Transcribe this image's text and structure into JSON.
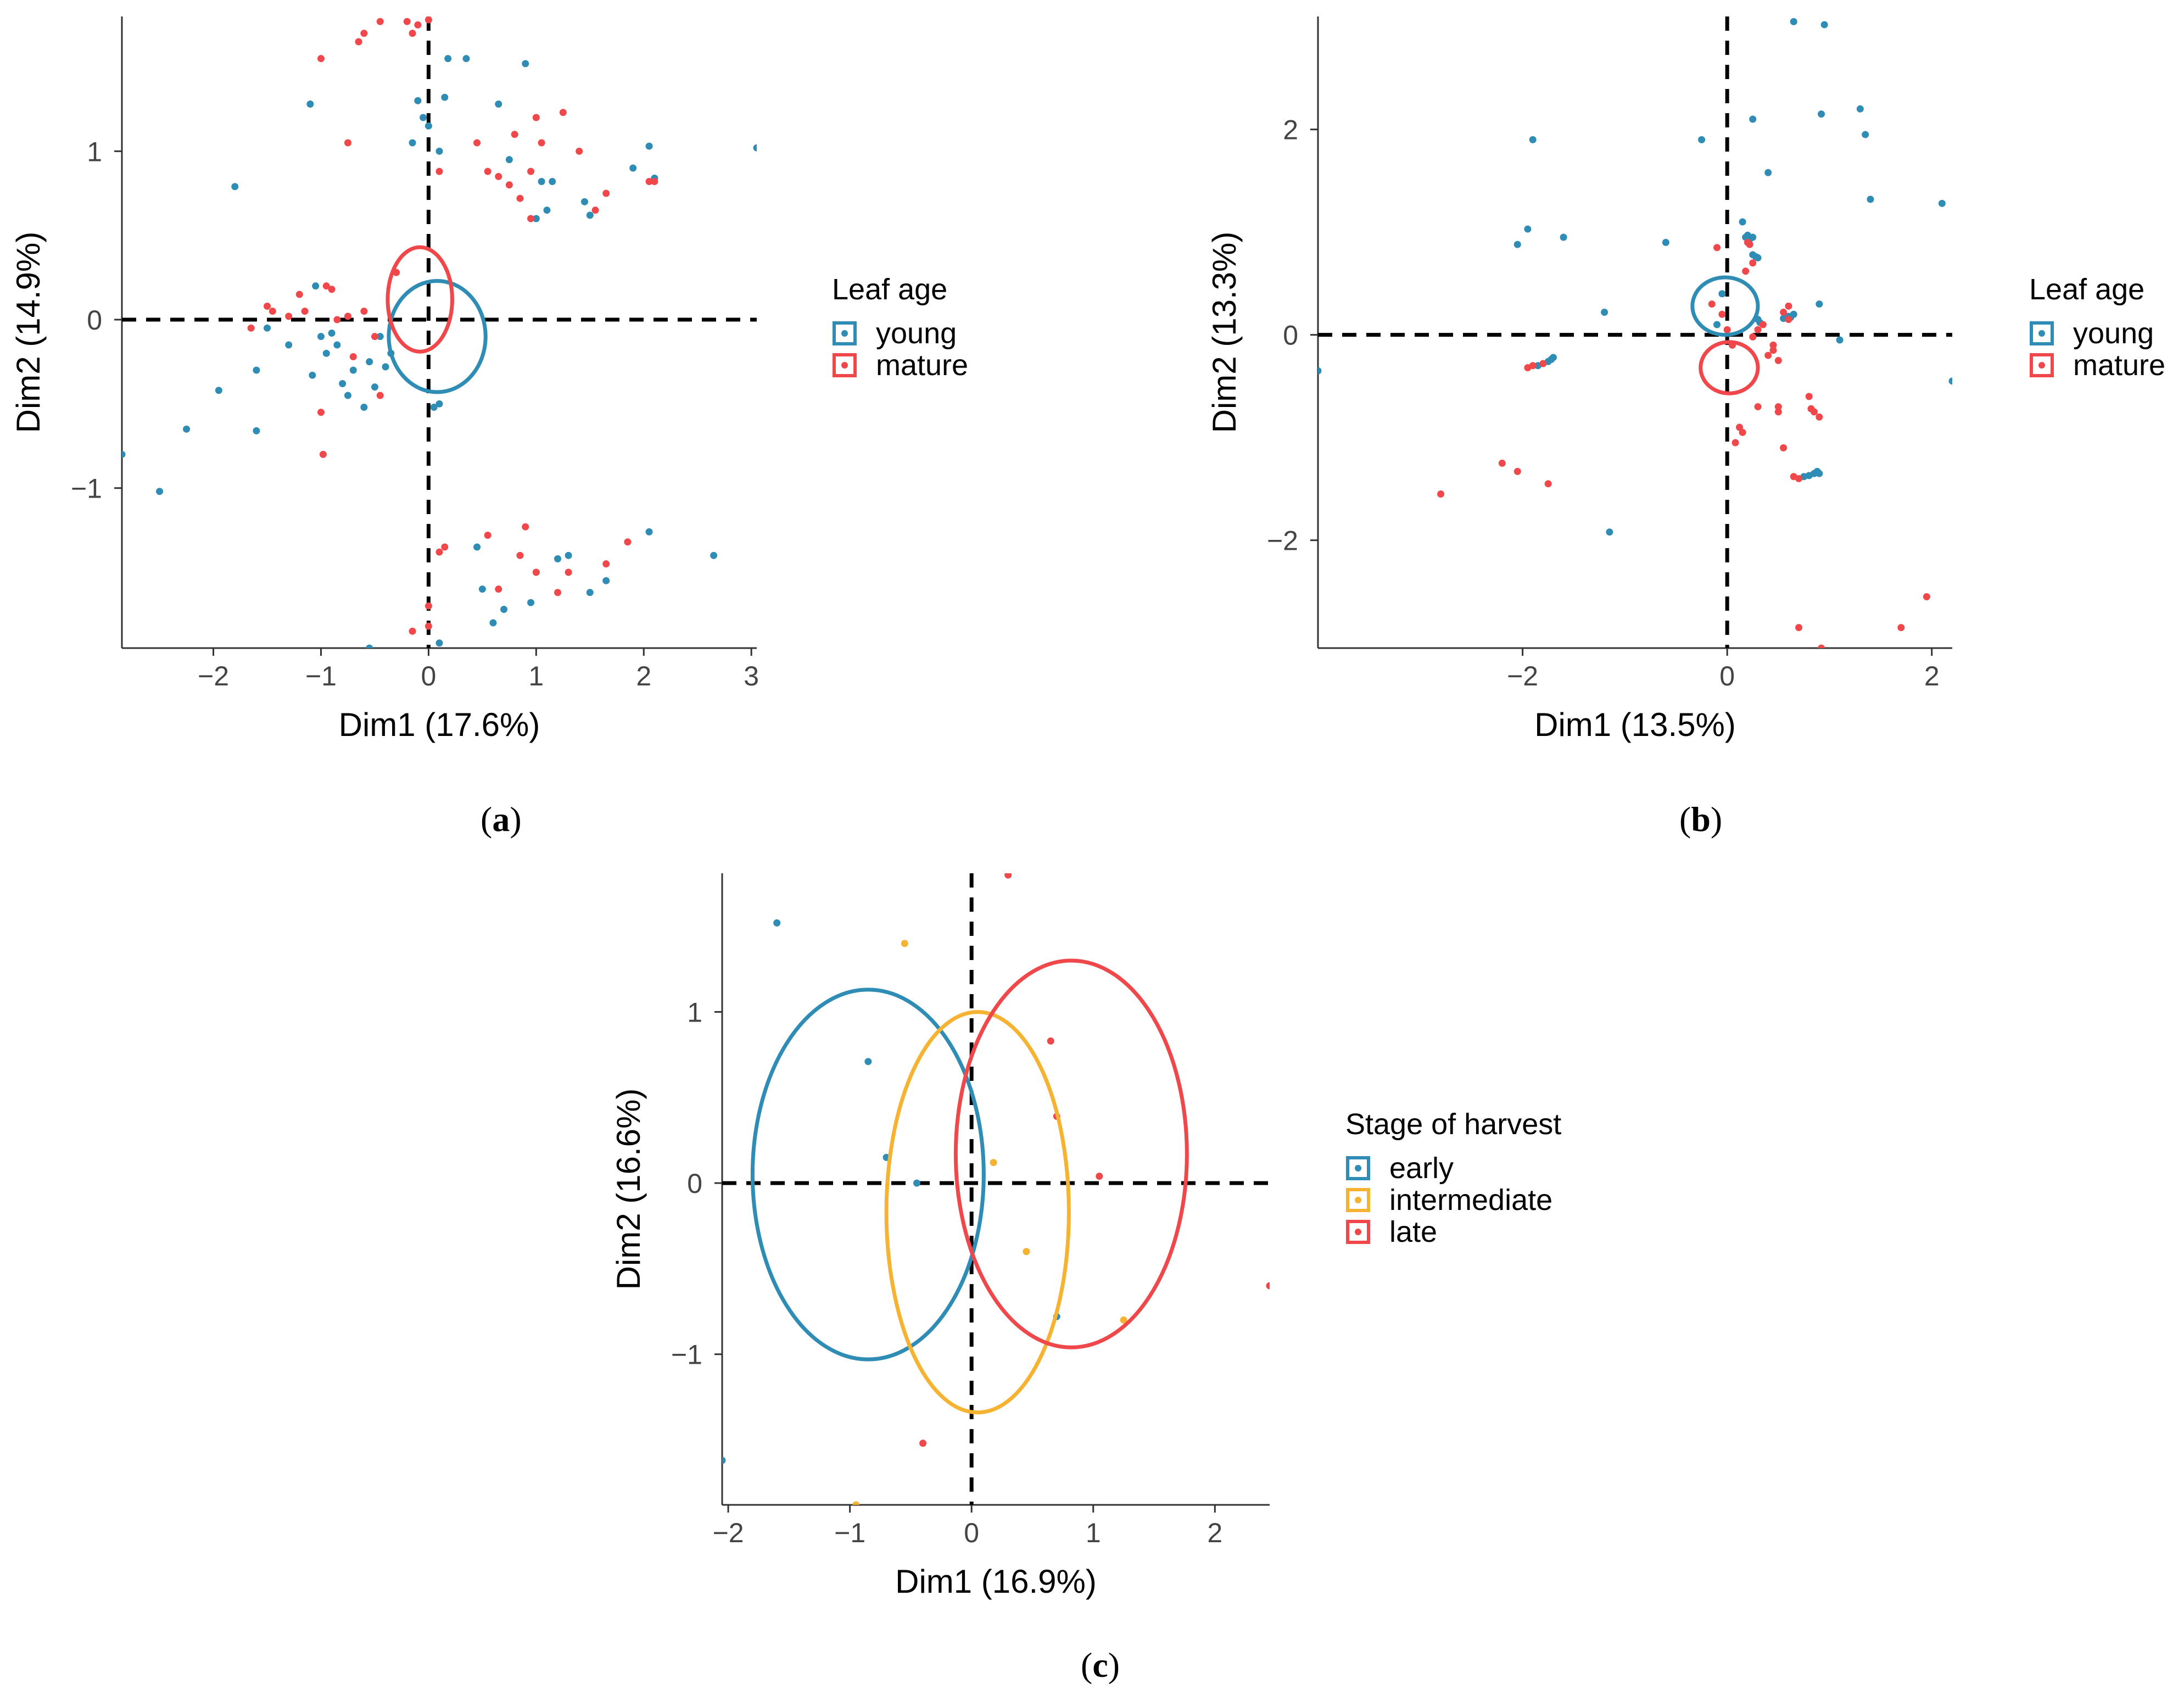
{
  "figure": {
    "captions": [
      {
        "open": "(",
        "letter": "a",
        "close": ")"
      },
      {
        "open": "(",
        "letter": "b",
        "close": ")"
      },
      {
        "open": "(",
        "letter": "c",
        "close": ")"
      }
    ]
  },
  "colors": {
    "young": "#2E8CB5",
    "mature": "#F0474B",
    "early": "#2E8CB5",
    "intermediate": "#F5B331",
    "late": "#F0474B",
    "axis": "#333333",
    "zero_line": "#000000"
  },
  "chart_data": [
    {
      "type": "scatter",
      "panel": "a",
      "xlabel": "Dim1 (17.6%)",
      "ylabel": "Dim2 (14.9%)",
      "xlim": [
        -2.85,
        3.05
      ],
      "ylim": [
        -1.95,
        1.8
      ],
      "xticks": [
        -2,
        -1,
        0,
        1,
        2,
        3
      ],
      "xtick_labels": [
        "−2",
        "−1",
        "0",
        "1",
        "2",
        "3"
      ],
      "yticks": [
        -1,
        0,
        1
      ],
      "ytick_labels": [
        "−1",
        "0",
        "1"
      ],
      "legend": {
        "title": "Leaf age",
        "position": "right",
        "entries": [
          "young",
          "mature"
        ]
      },
      "series": [
        {
          "name": "young",
          "color_key": "young",
          "ellipse": {
            "cx": 0.08,
            "cy": -0.1,
            "rx": 0.45,
            "ry": 0.33
          },
          "points": [
            [
              -2.85,
              -0.8
            ],
            [
              -2.5,
              -1.02
            ],
            [
              -2.25,
              -0.65
            ],
            [
              -1.95,
              -0.42
            ],
            [
              -1.8,
              0.79
            ],
            [
              -1.6,
              -0.3
            ],
            [
              -1.6,
              -0.66
            ],
            [
              -1.5,
              -0.05
            ],
            [
              -1.3,
              -0.15
            ],
            [
              -1.1,
              1.28
            ],
            [
              -1.08,
              -0.33
            ],
            [
              -1.05,
              0.2
            ],
            [
              -1.0,
              -0.1
            ],
            [
              -0.95,
              -0.2
            ],
            [
              -0.9,
              -0.08
            ],
            [
              -0.85,
              -0.15
            ],
            [
              -0.8,
              -0.38
            ],
            [
              -0.75,
              -0.45
            ],
            [
              -0.7,
              -0.3
            ],
            [
              -0.6,
              -0.52
            ],
            [
              -0.55,
              -0.25
            ],
            [
              -0.5,
              -0.4
            ],
            [
              -0.45,
              -0.1
            ],
            [
              -0.4,
              -0.28
            ],
            [
              -0.35,
              -0.2
            ],
            [
              -0.55,
              -1.95
            ],
            [
              -0.15,
              1.05
            ],
            [
              -0.1,
              1.3
            ],
            [
              -0.05,
              1.2
            ],
            [
              0.0,
              1.15
            ],
            [
              0.1,
              1.0
            ],
            [
              0.15,
              1.32
            ],
            [
              0.18,
              1.55
            ],
            [
              0.35,
              1.55
            ],
            [
              0.05,
              -0.52
            ],
            [
              0.1,
              -0.5
            ],
            [
              0.1,
              -1.92
            ],
            [
              0.65,
              1.28
            ],
            [
              0.75,
              0.95
            ],
            [
              0.9,
              1.52
            ],
            [
              1.0,
              0.6
            ],
            [
              1.05,
              0.82
            ],
            [
              1.1,
              0.65
            ],
            [
              1.15,
              0.82
            ],
            [
              1.45,
              0.7
            ],
            [
              1.5,
              0.62
            ],
            [
              1.9,
              0.9
            ],
            [
              2.05,
              1.03
            ],
            [
              2.1,
              0.84
            ],
            [
              3.05,
              1.02
            ],
            [
              0.45,
              -1.35
            ],
            [
              0.5,
              -1.6
            ],
            [
              0.6,
              -1.8
            ],
            [
              0.7,
              -1.72
            ],
            [
              0.95,
              -1.68
            ],
            [
              1.2,
              -1.42
            ],
            [
              1.3,
              -1.4
            ],
            [
              1.5,
              -1.62
            ],
            [
              1.65,
              -1.55
            ],
            [
              2.05,
              -1.26
            ],
            [
              2.65,
              -1.4
            ],
            [
              1.0,
              -1.5
            ]
          ]
        },
        {
          "name": "mature",
          "color_key": "mature",
          "ellipse": {
            "cx": -0.08,
            "cy": 0.12,
            "rx": 0.3,
            "ry": 0.31
          },
          "points": [
            [
              -1.65,
              -0.05
            ],
            [
              -1.5,
              0.08
            ],
            [
              -1.45,
              0.05
            ],
            [
              -1.3,
              0.02
            ],
            [
              -1.2,
              0.15
            ],
            [
              -1.15,
              0.05
            ],
            [
              -1.0,
              -0.55
            ],
            [
              -0.98,
              -0.8
            ],
            [
              -0.95,
              0.2
            ],
            [
              -0.9,
              0.18
            ],
            [
              -0.85,
              0.0
            ],
            [
              -0.75,
              0.02
            ],
            [
              -0.7,
              -0.22
            ],
            [
              -0.6,
              0.05
            ],
            [
              -0.5,
              -0.1
            ],
            [
              -0.45,
              -0.45
            ],
            [
              -0.3,
              0.28
            ],
            [
              -1.0,
              1.55
            ],
            [
              -0.75,
              1.05
            ],
            [
              -0.65,
              1.65
            ],
            [
              -0.6,
              1.7
            ],
            [
              -0.45,
              1.77
            ],
            [
              -0.2,
              1.77
            ],
            [
              -0.15,
              1.7
            ],
            [
              -0.1,
              1.75
            ],
            [
              0.0,
              1.78
            ],
            [
              0.1,
              0.88
            ],
            [
              0.1,
              -1.38
            ],
            [
              0.15,
              -1.35
            ],
            [
              0.45,
              1.05
            ],
            [
              0.55,
              0.88
            ],
            [
              0.65,
              0.85
            ],
            [
              0.75,
              0.8
            ],
            [
              0.8,
              1.1
            ],
            [
              0.85,
              0.72
            ],
            [
              0.85,
              -1.4
            ],
            [
              0.9,
              -1.23
            ],
            [
              0.95,
              0.6
            ],
            [
              0.95,
              0.88
            ],
            [
              1.0,
              1.2
            ],
            [
              1.05,
              1.05
            ],
            [
              1.25,
              1.23
            ],
            [
              1.4,
              1.0
            ],
            [
              1.55,
              0.65
            ],
            [
              1.65,
              0.75
            ],
            [
              2.05,
              0.82
            ],
            [
              2.1,
              0.82
            ],
            [
              0.55,
              -1.28
            ],
            [
              0.65,
              -1.6
            ],
            [
              1.0,
              -1.5
            ],
            [
              1.2,
              -1.62
            ],
            [
              1.3,
              -1.5
            ],
            [
              1.65,
              -1.45
            ],
            [
              1.85,
              -1.32
            ],
            [
              0.0,
              -1.82
            ],
            [
              -0.15,
              -1.85
            ],
            [
              0.0,
              -1.7
            ]
          ]
        }
      ]
    },
    {
      "type": "scatter",
      "panel": "b",
      "xlabel": "Dim1 (13.5%)",
      "ylabel": "Dim2 (13.3%)",
      "xlim": [
        -4.0,
        2.2
      ],
      "ylim": [
        -3.05,
        3.1
      ],
      "xticks": [
        -2,
        0,
        2
      ],
      "xtick_labels": [
        "−2",
        "0",
        "2"
      ],
      "yticks": [
        -2,
        0,
        2
      ],
      "ytick_labels": [
        "−2",
        "0",
        "2"
      ],
      "legend": {
        "title": "Leaf age",
        "position": "right",
        "entries": [
          "young",
          "mature"
        ]
      },
      "series": [
        {
          "name": "young",
          "color_key": "young",
          "ellipse": {
            "cx": -0.02,
            "cy": 0.28,
            "rx": 0.32,
            "ry": 0.28
          },
          "points": [
            [
              -4.0,
              -0.35
            ],
            [
              -2.05,
              0.88
            ],
            [
              -1.95,
              1.03
            ],
            [
              -1.9,
              1.9
            ],
            [
              -1.85,
              -0.3
            ],
            [
              -1.75,
              -0.26
            ],
            [
              -1.72,
              -0.24
            ],
            [
              -1.7,
              -0.22
            ],
            [
              -1.6,
              0.95
            ],
            [
              -1.2,
              0.22
            ],
            [
              -1.15,
              -1.92
            ],
            [
              -0.6,
              0.9
            ],
            [
              -0.25,
              1.9
            ],
            [
              -0.1,
              0.1
            ],
            [
              -0.05,
              0.4
            ],
            [
              0.15,
              1.1
            ],
            [
              0.18,
              0.95
            ],
            [
              0.2,
              0.97
            ],
            [
              0.22,
              0.93
            ],
            [
              0.25,
              0.95
            ],
            [
              0.25,
              0.78
            ],
            [
              0.28,
              0.76
            ],
            [
              0.3,
              0.75
            ],
            [
              0.32,
              0.12
            ],
            [
              0.3,
              0.15
            ],
            [
              0.25,
              2.1
            ],
            [
              0.4,
              1.58
            ],
            [
              0.55,
              0.16
            ],
            [
              0.6,
              0.18
            ],
            [
              0.62,
              0.17
            ],
            [
              0.65,
              0.2
            ],
            [
              0.65,
              3.05
            ],
            [
              0.75,
              -1.38
            ],
            [
              0.8,
              -1.37
            ],
            [
              0.85,
              -1.35
            ],
            [
              0.88,
              -1.33
            ],
            [
              0.9,
              0.3
            ],
            [
              0.9,
              -1.35
            ],
            [
              0.92,
              2.15
            ],
            [
              0.95,
              3.02
            ],
            [
              1.1,
              -0.05
            ],
            [
              1.3,
              2.2
            ],
            [
              1.35,
              1.95
            ],
            [
              1.4,
              1.32
            ],
            [
              2.1,
              1.28
            ],
            [
              2.2,
              -0.45
            ]
          ]
        },
        {
          "name": "mature",
          "color_key": "mature",
          "ellipse": {
            "cx": 0.02,
            "cy": -0.32,
            "rx": 0.28,
            "ry": 0.25
          },
          "points": [
            [
              -2.8,
              -1.55
            ],
            [
              -2.2,
              -1.25
            ],
            [
              -2.05,
              -1.33
            ],
            [
              -1.95,
              -0.32
            ],
            [
              -1.9,
              -0.3
            ],
            [
              -1.8,
              -0.28
            ],
            [
              -1.75,
              -1.45
            ],
            [
              -0.1,
              0.85
            ],
            [
              -0.15,
              0.3
            ],
            [
              -0.05,
              0.2
            ],
            [
              0.0,
              0.05
            ],
            [
              0.05,
              -0.1
            ],
            [
              0.08,
              -1.05
            ],
            [
              0.12,
              -0.9
            ],
            [
              0.15,
              -0.95
            ],
            [
              0.18,
              0.62
            ],
            [
              0.2,
              0.9
            ],
            [
              0.22,
              0.88
            ],
            [
              0.25,
              0.7
            ],
            [
              0.25,
              -0.02
            ],
            [
              0.3,
              0.05
            ],
            [
              0.3,
              -0.7
            ],
            [
              0.35,
              0.1
            ],
            [
              0.4,
              -0.2
            ],
            [
              0.45,
              -0.1
            ],
            [
              0.5,
              -0.25
            ],
            [
              0.5,
              -0.75
            ],
            [
              0.55,
              -1.1
            ],
            [
              0.55,
              0.22
            ],
            [
              0.6,
              0.28
            ],
            [
              0.6,
              0.15
            ],
            [
              0.65,
              -1.38
            ],
            [
              0.7,
              -1.4
            ],
            [
              0.7,
              -2.85
            ],
            [
              0.8,
              -0.6
            ],
            [
              0.82,
              -0.72
            ],
            [
              0.85,
              -0.75
            ],
            [
              0.9,
              -0.8
            ],
            [
              0.92,
              -3.05
            ],
            [
              1.7,
              -2.85
            ],
            [
              1.95,
              -2.55
            ],
            [
              0.5,
              -0.7
            ],
            [
              0.45,
              -0.15
            ]
          ]
        }
      ]
    },
    {
      "type": "scatter",
      "panel": "c",
      "xlabel": "Dim1 (16.9%)",
      "ylabel": "Dim2 (16.6%)",
      "xlim": [
        -2.05,
        2.45
      ],
      "ylim": [
        -1.88,
        1.81
      ],
      "xticks": [
        -2,
        -1,
        0,
        1,
        2
      ],
      "xtick_labels": [
        "−2",
        "−1",
        "0",
        "1",
        "2"
      ],
      "yticks": [
        -1,
        0,
        1
      ],
      "ytick_labels": [
        "−1",
        "0",
        "1"
      ],
      "legend": {
        "title": "Stage of harvest",
        "position": "right",
        "entries": [
          "early",
          "intermediate",
          "late"
        ]
      },
      "series": [
        {
          "name": "early",
          "color_key": "early",
          "ellipse": {
            "cx": -0.85,
            "cy": 0.05,
            "rx": 0.95,
            "ry": 1.08
          },
          "points": [
            [
              -1.6,
              1.52
            ],
            [
              -0.85,
              0.71
            ],
            [
              -0.7,
              0.15
            ],
            [
              -0.45,
              0.0
            ],
            [
              -2.05,
              -1.62
            ],
            [
              0.7,
              -0.78
            ]
          ]
        },
        {
          "name": "intermediate",
          "color_key": "intermediate",
          "ellipse": {
            "cx": 0.05,
            "cy": -0.17,
            "rx": 0.75,
            "ry": 1.17
          },
          "points": [
            [
              -0.55,
              1.4
            ],
            [
              0.18,
              0.12
            ],
            [
              0.45,
              -0.4
            ],
            [
              1.25,
              -0.8
            ],
            [
              -0.95,
              -1.88
            ]
          ]
        },
        {
          "name": "late",
          "color_key": "late",
          "ellipse": {
            "cx": 0.82,
            "cy": 0.17,
            "rx": 0.95,
            "ry": 1.13
          },
          "points": [
            [
              0.3,
              1.8
            ],
            [
              0.65,
              0.83
            ],
            [
              0.7,
              0.39
            ],
            [
              1.05,
              0.04
            ],
            [
              -0.4,
              -1.52
            ],
            [
              2.45,
              -0.6
            ]
          ]
        }
      ]
    }
  ]
}
